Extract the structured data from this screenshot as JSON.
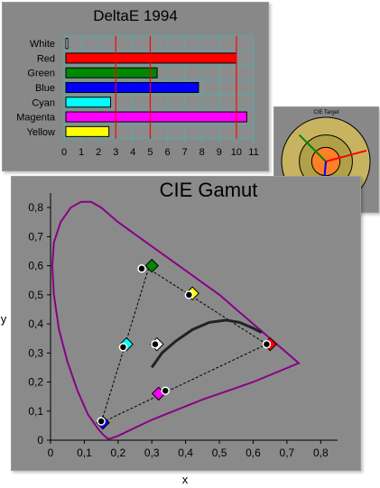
{
  "chart_data": [
    {
      "type": "bar",
      "orientation": "horizontal",
      "title": "DeltaE 1994",
      "categories": [
        "White",
        "Red",
        "Green",
        "Blue",
        "Cyan",
        "Magenta",
        "Yellow"
      ],
      "values": [
        0.2,
        10.0,
        5.4,
        7.8,
        2.7,
        10.6,
        2.6
      ],
      "colors": [
        "#ffffff",
        "#ff0000",
        "#008800",
        "#0000ff",
        "#00ffff",
        "#ff00ff",
        "#ffff00"
      ],
      "xlim": [
        0,
        11
      ],
      "xticks": [
        "0",
        "1",
        "2",
        "3",
        "4",
        "5",
        "6",
        "7",
        "8",
        "9",
        "10",
        "11"
      ],
      "threshold_lines": [
        3,
        5,
        10
      ],
      "threshold_color": "#ff0000",
      "grid": true,
      "grid_color": "#55aaaa"
    },
    {
      "type": "scatter",
      "title": "CIE Gamut",
      "xlabel": "x",
      "ylabel": "y",
      "xlim": [
        0,
        0.85
      ],
      "ylim": [
        0,
        0.85
      ],
      "xticks": [
        "0",
        "0,1",
        "0,2",
        "0,3",
        "0,4",
        "0,5",
        "0,6",
        "0,7",
        "0,8"
      ],
      "yticks": [
        "0",
        "0,1",
        "0,2",
        "0,3",
        "0,4",
        "0,5",
        "0,6",
        "0,7",
        "0,8"
      ],
      "locus_color": "#880088",
      "locus": [
        [
          0.175,
          0.005
        ],
        [
          0.17,
          0.005
        ],
        [
          0.165,
          0.01
        ],
        [
          0.155,
          0.02
        ],
        [
          0.14,
          0.04
        ],
        [
          0.11,
          0.09
        ],
        [
          0.08,
          0.17
        ],
        [
          0.05,
          0.27
        ],
        [
          0.025,
          0.38
        ],
        [
          0.01,
          0.5
        ],
        [
          0.005,
          0.6
        ],
        [
          0.01,
          0.68
        ],
        [
          0.03,
          0.75
        ],
        [
          0.06,
          0.8
        ],
        [
          0.09,
          0.82
        ],
        [
          0.12,
          0.82
        ],
        [
          0.15,
          0.8
        ],
        [
          0.2,
          0.75
        ],
        [
          0.26,
          0.7
        ],
        [
          0.32,
          0.65
        ],
        [
          0.38,
          0.6
        ],
        [
          0.44,
          0.55
        ],
        [
          0.5,
          0.5
        ],
        [
          0.56,
          0.44
        ],
        [
          0.62,
          0.38
        ],
        [
          0.68,
          0.32
        ],
        [
          0.735,
          0.265
        ],
        [
          0.6,
          0.2
        ],
        [
          0.45,
          0.14
        ],
        [
          0.3,
          0.07
        ],
        [
          0.2,
          0.015
        ],
        [
          0.175,
          0.005
        ]
      ],
      "blackbody_curve": [
        [
          0.3,
          0.25
        ],
        [
          0.33,
          0.3
        ],
        [
          0.37,
          0.34
        ],
        [
          0.42,
          0.38
        ],
        [
          0.47,
          0.405
        ],
        [
          0.52,
          0.413
        ],
        [
          0.56,
          0.405
        ],
        [
          0.6,
          0.385
        ],
        [
          0.625,
          0.37
        ]
      ],
      "measured_triangle": [
        [
          0.64,
          0.33
        ],
        [
          0.29,
          0.59
        ],
        [
          0.15,
          0.06
        ]
      ],
      "reference_triangle": [
        [
          0.64,
          0.33
        ],
        [
          0.3,
          0.6
        ],
        [
          0.15,
          0.06
        ]
      ],
      "measured_points": [
        {
          "x": 0.64,
          "y": 0.33
        },
        {
          "x": 0.27,
          "y": 0.59
        },
        {
          "x": 0.15,
          "y": 0.065
        },
        {
          "x": 0.215,
          "y": 0.32
        },
        {
          "x": 0.41,
          "y": 0.5
        },
        {
          "x": 0.34,
          "y": 0.17
        },
        {
          "x": 0.31,
          "y": 0.33
        }
      ],
      "reference_markers": [
        {
          "x": 0.65,
          "y": 0.33,
          "color": "#ff0000"
        },
        {
          "x": 0.3,
          "y": 0.6,
          "color": "#008800"
        },
        {
          "x": 0.155,
          "y": 0.06,
          "color": "#0000ff"
        },
        {
          "x": 0.225,
          "y": 0.33,
          "color": "#00ffff"
        },
        {
          "x": 0.32,
          "y": 0.16,
          "color": "#ff00ff"
        },
        {
          "x": 0.42,
          "y": 0.505,
          "color": "#ffff00"
        },
        {
          "x": 0.315,
          "y": 0.33,
          "color": "#ffffff"
        }
      ]
    }
  ],
  "target": {
    "title": "CIE Target",
    "outer_color": "#c8b460",
    "inner_color": "#b0a048",
    "center_color": "#ff7f27",
    "vectors": [
      {
        "color": "#ff0000",
        "angle": -15,
        "len": 0.95
      },
      {
        "color": "#008800",
        "angle": -135,
        "len": 0.85
      },
      {
        "color": "#0000ff",
        "angle": 95,
        "len": 0.95
      }
    ]
  }
}
